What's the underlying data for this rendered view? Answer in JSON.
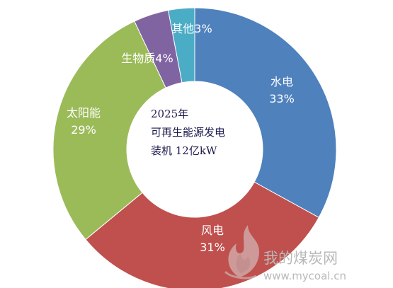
{
  "chart_data": {
    "type": "pie",
    "donut": true,
    "slices": [
      {
        "label": "水电",
        "value": 33,
        "display": "33%",
        "color": "#4f81bd"
      },
      {
        "label": "风电",
        "value": 31,
        "display": "31%",
        "color": "#c0504d"
      },
      {
        "label": "太阳能",
        "value": 29,
        "display": "29%",
        "color": "#9bbb59"
      },
      {
        "label": "生物质",
        "value": 4,
        "display": "4%",
        "color": "#8064a2"
      },
      {
        "label": "其他",
        "value": 3,
        "display": "3%",
        "color": "#4bacc6"
      }
    ],
    "center_text": [
      "2025年",
      "可再生能源发电",
      "装机 12亿kW"
    ]
  },
  "watermark": {
    "name": "我的煤炭网",
    "url": "www.mycoal.cn"
  }
}
